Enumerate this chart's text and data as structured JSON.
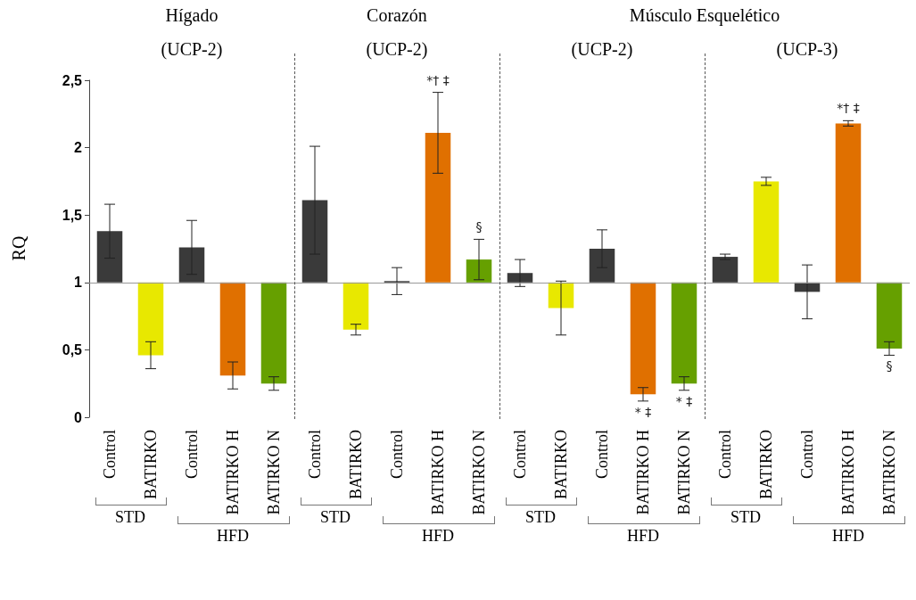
{
  "chart_data": {
    "type": "bar",
    "ylabel": "RQ",
    "categories": [
      "Control",
      "BATIRKO",
      "Control",
      "BATIRKO H",
      "BATIRKO N",
      "Control",
      "BATIRKO",
      "Control",
      "BATIRKO H",
      "BATIRKO N",
      "Control",
      "BATIRKO",
      "Control",
      "BATIRKO H",
      "BATIRKO N",
      "Control",
      "BATIRKO",
      "Control",
      "BATIRKO H",
      "BATIRKO N"
    ],
    "base": [
      1,
      1,
      1,
      1,
      1,
      1,
      1,
      1,
      1,
      1,
      1,
      1,
      1,
      1,
      1,
      1,
      1,
      1,
      1,
      1
    ],
    "values": [
      0.38,
      -0.54,
      0.26,
      -0.69,
      -0.75,
      0.61,
      -0.35,
      0.01,
      1.11,
      0.17,
      0.07,
      -0.19,
      0.25,
      -0.83,
      -0.75,
      0.19,
      0.75,
      -0.07,
      1.18,
      -0.49
    ],
    "errors": [
      0.2,
      0.1,
      0.2,
      0.1,
      0.05,
      0.4,
      0.04,
      0.1,
      0.3,
      0.15,
      0.1,
      0.2,
      0.14,
      0.05,
      0.05,
      0.02,
      0.03,
      0.2,
      0.02,
      0.05
    ],
    "colors": [
      "#3a3a3a",
      "#e8e800",
      "#3a3a3a",
      "#e07000",
      "#66a000",
      "#3a3a3a",
      "#e8e800",
      "#3a3a3a",
      "#e07000",
      "#66a000",
      "#3a3a3a",
      "#e8e800",
      "#3a3a3a",
      "#e07000",
      "#66a000",
      "#3a3a3a",
      "#e8e800",
      "#3a3a3a",
      "#e07000",
      "#66a000"
    ],
    "ylim": [
      0,
      2.5
    ],
    "yticks": [
      0,
      {
        "value": 0.5,
        "label": "0,5"
      },
      1,
      {
        "value": 1.5,
        "label": "1,5"
      },
      2,
      {
        "value": 2.5,
        "label": "2,5"
      }
    ],
    "ref_lines": [
      {
        "axis": "y",
        "value": 1
      }
    ],
    "annotations": [
      "Hígado",
      "(UCP-2)",
      "Corazón",
      "(UCP-2)",
      "Músculo Esquelético",
      "(UCP-2)",
      "(UCP-3)",
      "STD",
      "HFD",
      "STD",
      "HFD",
      "STD",
      "HFD",
      "STD",
      "HFD",
      "*† ‡",
      "§",
      "* ‡",
      "* ‡",
      "*† ‡",
      "§"
    ]
  }
}
